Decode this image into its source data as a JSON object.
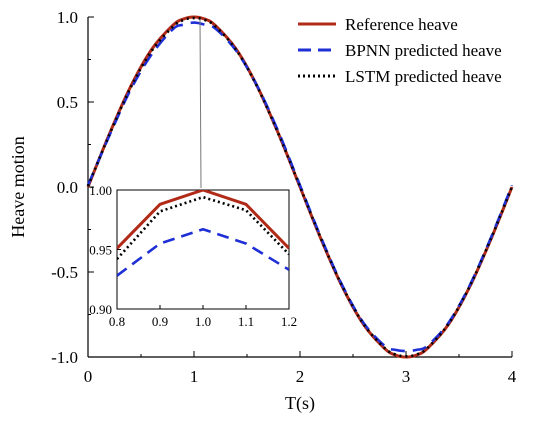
{
  "chart_data": {
    "type": "line",
    "xlabel": "T(s)",
    "ylabel": "Heave motion",
    "xlim": [
      0,
      4
    ],
    "ylim": [
      -1.0,
      1.0
    ],
    "xticks": [
      "0",
      "1",
      "2",
      "3",
      "4"
    ],
    "yticks": [
      "1.0",
      "0.5",
      "0.0",
      "-0.5",
      "-1.0"
    ],
    "grid": false,
    "legend_position": "top-right",
    "series": [
      {
        "name": "Reference heave",
        "color": "#b02a17",
        "style": "solid",
        "x": [
          0,
          0.2,
          0.4,
          0.6,
          0.8,
          0.9,
          1.0,
          1.1,
          1.2,
          1.4,
          1.6,
          1.8,
          2.0,
          2.2,
          2.4,
          2.6,
          2.8,
          2.9,
          3.0,
          3.1,
          3.2,
          3.4,
          3.6,
          3.8,
          4.0
        ],
        "y": [
          0,
          0.309,
          0.588,
          0.809,
          0.951,
          0.988,
          1.0,
          0.988,
          0.951,
          0.809,
          0.588,
          0.309,
          0,
          -0.309,
          -0.588,
          -0.809,
          -0.951,
          -0.988,
          -1.0,
          -0.988,
          -0.951,
          -0.809,
          -0.588,
          -0.309,
          0
        ]
      },
      {
        "name": "BPNN predicted heave",
        "color": "#1f2fd6",
        "style": "dashed",
        "x": [
          0,
          0.2,
          0.4,
          0.6,
          0.8,
          0.9,
          1.0,
          1.1,
          1.2,
          1.4,
          1.6,
          1.8,
          2.0,
          2.2,
          2.4,
          2.6,
          2.8,
          2.9,
          3.0,
          3.1,
          3.2,
          3.4,
          3.6,
          3.8,
          4.0
        ],
        "y": [
          0.01,
          0.3,
          0.57,
          0.78,
          0.928,
          0.955,
          0.967,
          0.955,
          0.933,
          0.8,
          0.59,
          0.32,
          0.01,
          -0.3,
          -0.58,
          -0.8,
          -0.935,
          -0.958,
          -0.965,
          -0.958,
          -0.935,
          -0.8,
          -0.58,
          -0.3,
          0.01
        ]
      },
      {
        "name": "LSTM predicted heave",
        "color": "#000000",
        "style": "dotted",
        "x": [
          0,
          0.2,
          0.4,
          0.6,
          0.8,
          0.9,
          1.0,
          1.1,
          1.2,
          1.4,
          1.6,
          1.8,
          2.0,
          2.2,
          2.4,
          2.6,
          2.8,
          2.9,
          3.0,
          3.1,
          3.2,
          3.4,
          3.6,
          3.8,
          4.0
        ],
        "y": [
          0.005,
          0.305,
          0.582,
          0.8,
          0.942,
          0.982,
          0.994,
          0.983,
          0.946,
          0.805,
          0.585,
          0.307,
          0.002,
          -0.306,
          -0.585,
          -0.806,
          -0.948,
          -0.985,
          -0.996,
          -0.985,
          -0.948,
          -0.806,
          -0.585,
          -0.306,
          0.002
        ]
      }
    ],
    "inset": {
      "xlim": [
        0.8,
        1.2
      ],
      "ylim": [
        0.9,
        1.0
      ],
      "xticks": [
        "0.8",
        "0.9",
        "1.0",
        "1.1",
        "1.2"
      ],
      "yticks": [
        "1.00",
        "0.95",
        "0.90"
      ]
    }
  }
}
